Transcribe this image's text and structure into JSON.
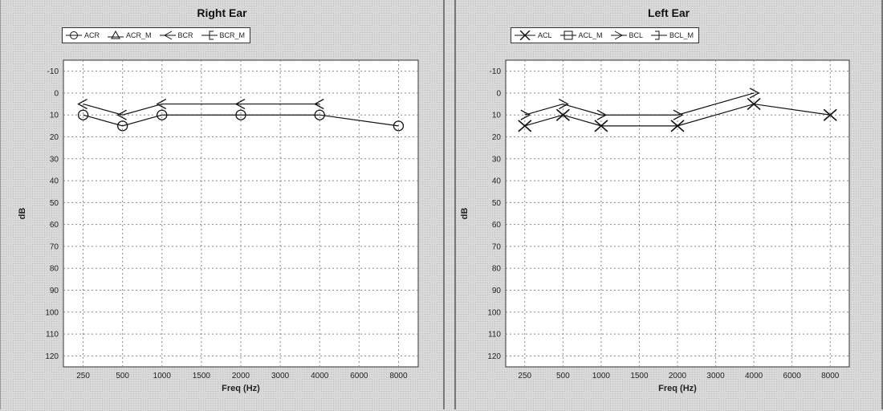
{
  "chart_data": [
    {
      "type": "line",
      "title": "Right Ear",
      "xlabel": "Freq (Hz)",
      "ylabel": "dB",
      "x_categories": [
        "250",
        "500",
        "1000",
        "1500",
        "2000",
        "3000",
        "4000",
        "6000",
        "8000"
      ],
      "y_ticks": [
        -10,
        0,
        10,
        20,
        30,
        40,
        50,
        60,
        70,
        80,
        90,
        100,
        110,
        120
      ],
      "ylim": [
        -15,
        125
      ],
      "y_inverted": true,
      "grid": true,
      "legend_placement": "top-left",
      "legend": [
        "ACR",
        "ACR_M",
        "BCR",
        "BCR_M"
      ],
      "series": [
        {
          "name": "ACR",
          "marker": "circle",
          "x": [
            "250",
            "500",
            "1000",
            "2000",
            "4000",
            "8000"
          ],
          "values": [
            10,
            15,
            10,
            10,
            10,
            15
          ]
        },
        {
          "name": "BCR",
          "marker": "arrow-left",
          "x": [
            "250",
            "500",
            "1000",
            "2000",
            "4000"
          ],
          "values": [
            5,
            10,
            5,
            5,
            5
          ]
        }
      ]
    },
    {
      "type": "line",
      "title": "Left Ear",
      "xlabel": "Freq (Hz)",
      "ylabel": "dB",
      "x_categories": [
        "250",
        "500",
        "1000",
        "1500",
        "2000",
        "3000",
        "4000",
        "6000",
        "8000"
      ],
      "y_ticks": [
        -10,
        0,
        10,
        20,
        30,
        40,
        50,
        60,
        70,
        80,
        90,
        100,
        110,
        120
      ],
      "ylim": [
        -15,
        125
      ],
      "y_inverted": true,
      "grid": true,
      "legend_placement": "top-left",
      "legend": [
        "ACL",
        "ACL_M",
        "BCL",
        "BCL_M"
      ],
      "series": [
        {
          "name": "ACL",
          "marker": "x",
          "x": [
            "250",
            "500",
            "1000",
            "2000",
            "4000",
            "8000"
          ],
          "values": [
            15,
            10,
            15,
            15,
            5,
            10
          ]
        },
        {
          "name": "BCL",
          "marker": "arrow-right",
          "x": [
            "250",
            "500",
            "1000",
            "2000",
            "4000"
          ],
          "values": [
            10,
            5,
            10,
            10,
            0
          ]
        }
      ]
    }
  ]
}
